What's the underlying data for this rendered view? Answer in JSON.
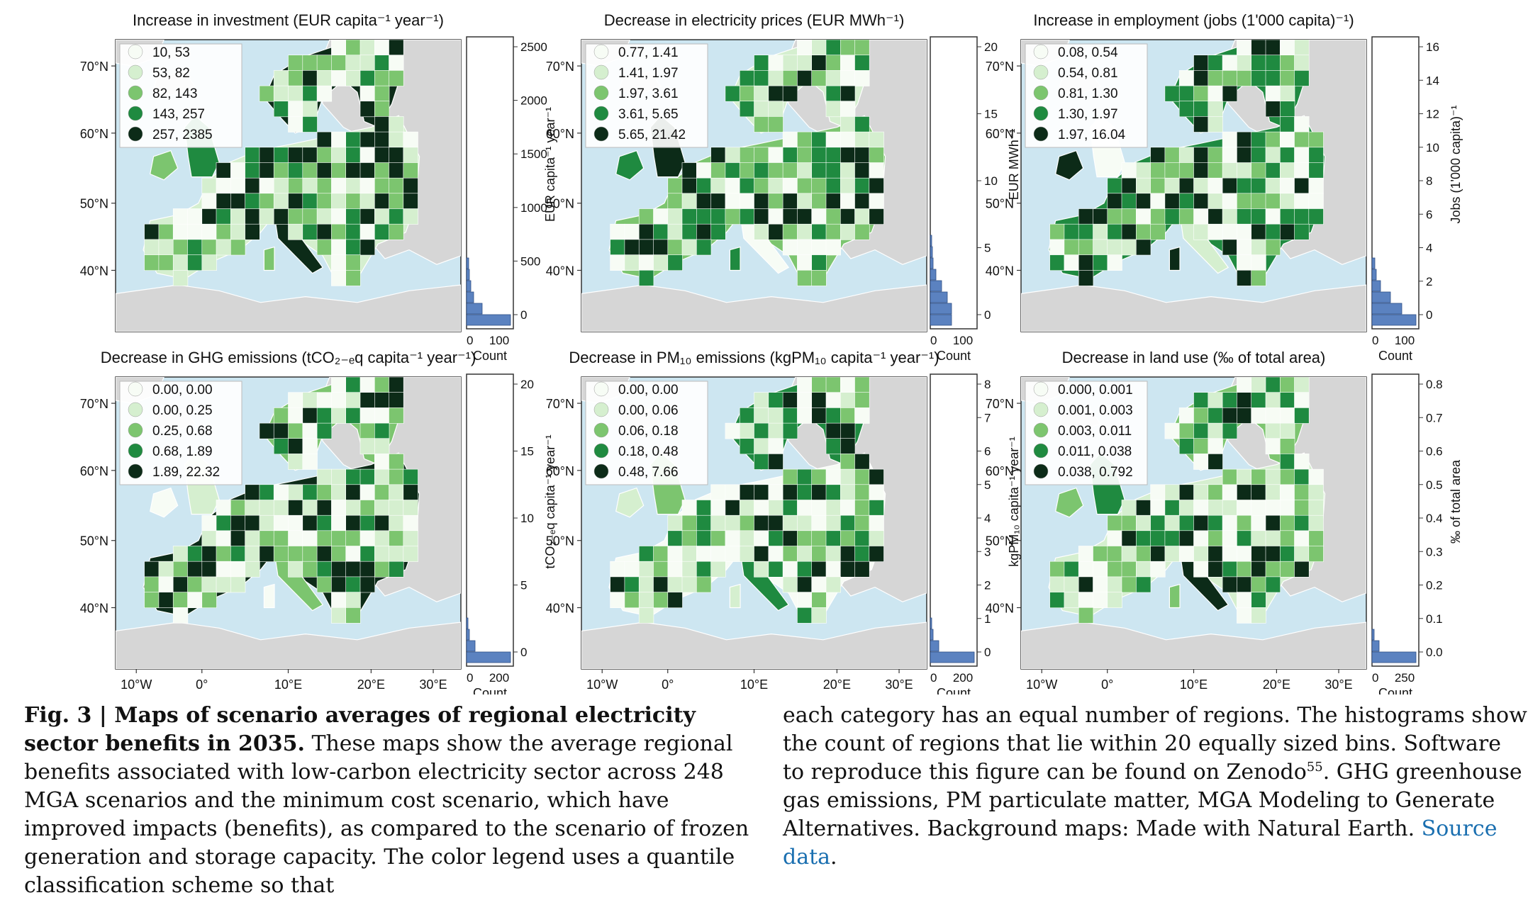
{
  "panels": [
    {
      "title": "Increase in investment (EUR capita⁻¹ year⁻¹)",
      "legend": [
        "10,   53",
        "53,   82",
        "82,  143",
        "143,  257",
        "257, 2385"
      ],
      "hist_ticks": [
        "2500",
        "2000",
        "1500",
        "1000",
        "500",
        "0"
      ],
      "hist_ylabel": "EUR capita⁻¹ year⁻¹",
      "count_ticks": [
        "0",
        "100"
      ],
      "count_label": "Count"
    },
    {
      "title": "Decrease in electricity prices (EUR MWh⁻¹)",
      "legend": [
        "0.77, 1.41",
        "1.41, 1.97",
        "1.97, 3.61",
        "3.61, 5.65",
        "5.65, 21.42"
      ],
      "hist_ticks": [
        "20",
        "15",
        "10",
        "5",
        "0"
      ],
      "hist_ylabel": "EUR MWh⁻¹",
      "count_ticks": [
        "0",
        "100"
      ],
      "count_label": "Count"
    },
    {
      "title": "Increase in employment (jobs (1'000 capita)⁻¹)",
      "legend": [
        "0.08, 0.54",
        "0.54, 0.81",
        "0.81, 1.30",
        "1.30, 1.97",
        "1.97, 16.04"
      ],
      "hist_ticks": [
        "16",
        "14",
        "12",
        "10",
        "8",
        "6",
        "4",
        "2",
        "0"
      ],
      "hist_ylabel": "Jobs (1'000 capita)⁻¹",
      "count_ticks": [
        "0",
        "100"
      ],
      "count_label": "Count"
    },
    {
      "title": "Decrease in GHG emissions (tCO₂₋ₑq capita⁻¹ year⁻¹)",
      "legend": [
        "0.00,  0.00",
        "0.00,  0.25",
        "0.25,  0.68",
        "0.68,  1.89",
        "1.89, 22.32"
      ],
      "hist_ticks": [
        "20",
        "15",
        "10",
        "5",
        "0"
      ],
      "hist_ylabel": "tCO₂₋ₑq capita⁻¹ year⁻¹",
      "count_ticks": [
        "0",
        "200"
      ],
      "count_label": "Count"
    },
    {
      "title": "Decrease in PM₁₀ emissions (kgPM₁₀ capita⁻¹ year⁻¹)",
      "legend": [
        "0.00, 0.00",
        "0.00, 0.06",
        "0.06, 0.18",
        "0.18, 0.48",
        "0.48, 7.66"
      ],
      "hist_ticks": [
        "8",
        "7",
        "6",
        "5",
        "4",
        "3",
        "2",
        "1",
        "0"
      ],
      "hist_ylabel": "kgPM₁₀ capita⁻¹ year⁻¹",
      "count_ticks": [
        "0",
        "200"
      ],
      "count_label": "Count"
    },
    {
      "title": "Decrease in land use (‰ of total area)",
      "legend": [
        "0.000, 0.001",
        "0.001, 0.003",
        "0.003, 0.011",
        "0.011, 0.038",
        "0.038, 0.792"
      ],
      "hist_ticks": [
        "0.8",
        "0.7",
        "0.6",
        "0.5",
        "0.4",
        "0.3",
        "0.2",
        "0.1",
        "0.0"
      ],
      "hist_ylabel": "‰ of total area",
      "count_ticks": [
        "0",
        "250"
      ],
      "count_label": "Count"
    }
  ],
  "lat_ticks": [
    "70°N",
    "60°N",
    "50°N",
    "40°N"
  ],
  "lon_ticks": [
    "10°W",
    "0°",
    "10°E",
    "20°E",
    "30°E"
  ],
  "colors": {
    "water": "#cde6f1",
    "land": "#d6d6d6",
    "c1": "#f7fcf5",
    "c2": "#d5efcf",
    "c3": "#7cc56f",
    "c4": "#1f8a40",
    "c5": "#0c2b18",
    "bar": "#5b82c0"
  },
  "caption": {
    "figure_label": "Fig. 3 | Maps of scenario averages of regional electricity sector benefits in 2035.",
    "left_text": "These maps show the average regional benefits associated with low-carbon electricity sector across 248 MGA scenarios and the minimum cost scenario, which have improved impacts (benefits), as compared to the scenario of frozen generation and storage capacity. The color legend uses a quantile classification scheme so that",
    "right_text_1": "each category has an equal number of regions. The histograms show the count of regions that lie within 20 equally sized bins. Software to reproduce this figure can be found on Zenodo",
    "ref": "55",
    "right_text_2": ". GHG greenhouse gas emissions, PM particulate matter, MGA Modeling to Generate Alternatives. Background maps: Made with Natural Earth. ",
    "source_link": "Source data",
    "period": "."
  }
}
